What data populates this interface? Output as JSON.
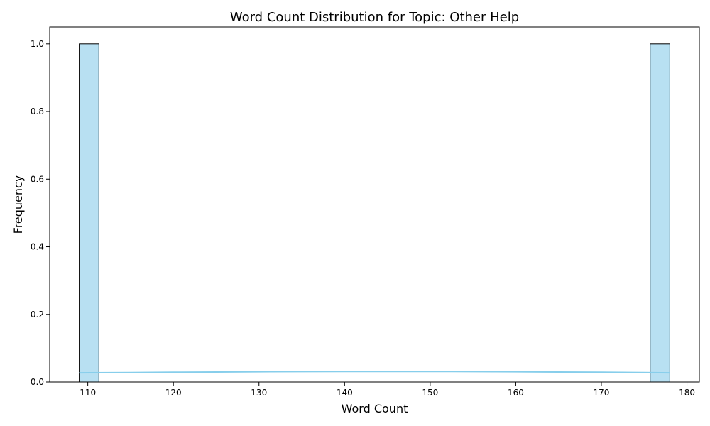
{
  "chart_data": {
    "type": "bar",
    "title": "Word Count Distribution for Topic: Other Help",
    "xlabel": "Word Count",
    "ylabel": "Frequency",
    "xlim": [
      105.55,
      181.45
    ],
    "ylim": [
      0,
      1.05
    ],
    "xticks": [
      110,
      120,
      130,
      140,
      150,
      160,
      170,
      180
    ],
    "yticks": [
      0.0,
      0.2,
      0.4,
      0.6,
      0.8,
      1.0
    ],
    "ytick_labels": [
      "0.0",
      "0.2",
      "0.4",
      "0.6",
      "0.8",
      "1.0"
    ],
    "bars": [
      {
        "x_start": 109.0,
        "x_end": 111.3,
        "value": 1
      },
      {
        "x_start": 175.7,
        "x_end": 178.0,
        "value": 1
      }
    ],
    "kde_line": {
      "x": [
        109,
        115,
        120,
        125,
        130,
        135,
        140,
        145,
        150,
        155,
        160,
        165,
        170,
        175,
        178
      ],
      "y": [
        0.027,
        0.028,
        0.0288,
        0.0295,
        0.0302,
        0.0307,
        0.031,
        0.0311,
        0.031,
        0.0307,
        0.0302,
        0.0295,
        0.0287,
        0.0278,
        0.027
      ]
    },
    "grid": false,
    "legend": "none",
    "colors": {
      "bar_fill": "#b8e0f2",
      "bar_edge": "#000000",
      "kde": "#87ceeb"
    }
  }
}
